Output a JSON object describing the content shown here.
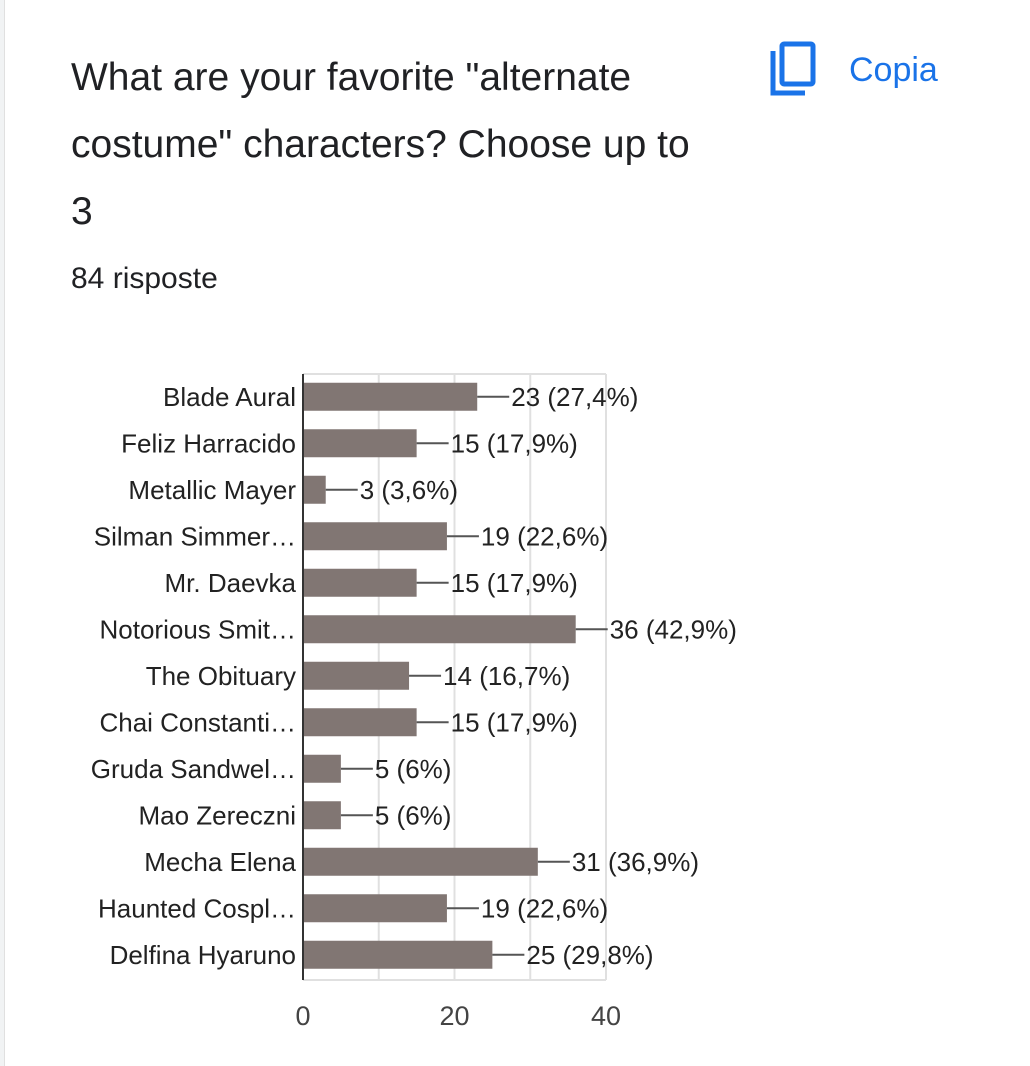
{
  "question": {
    "title": "What are your favorite \"alternate costume\" characters? Choose up to 3",
    "response_count": "84 risposte"
  },
  "copy_button": {
    "label": "Copia",
    "icon": "copy-icon"
  },
  "colors": {
    "bar": "#817673",
    "accent": "#1a73e8",
    "grid": "#e0e0e0",
    "axis": "#333333"
  },
  "chart_data": {
    "type": "bar",
    "orientation": "horizontal",
    "categories": [
      "Blade Aural",
      "Feliz Harracido",
      "Metallic Mayer",
      "Silman Simmer…",
      "Mr. Daevka",
      "Notorious Smit…",
      "The Obituary",
      "Chai Constanti…",
      "Gruda Sandwel…",
      "Mao Zereczni",
      "Mecha Elena",
      "Haunted Cospl…",
      "Delfina Hyaruno"
    ],
    "values": [
      23,
      15,
      3,
      19,
      15,
      36,
      14,
      15,
      5,
      5,
      31,
      19,
      25
    ],
    "value_labels": [
      "23 (27,4%)",
      "15 (17,9%)",
      "3 (3,6%)",
      "19 (22,6%)",
      "15 (17,9%)",
      "36 (42,9%)",
      "14 (16,7%)",
      "15 (17,9%)",
      "5 (6%)",
      "5 (6%)",
      "31 (36,9%)",
      "19 (22,6%)",
      "25 (29,8%)"
    ],
    "xlim": [
      0,
      40
    ],
    "x_ticks": [
      "0",
      "20",
      "40"
    ],
    "grid": true
  }
}
